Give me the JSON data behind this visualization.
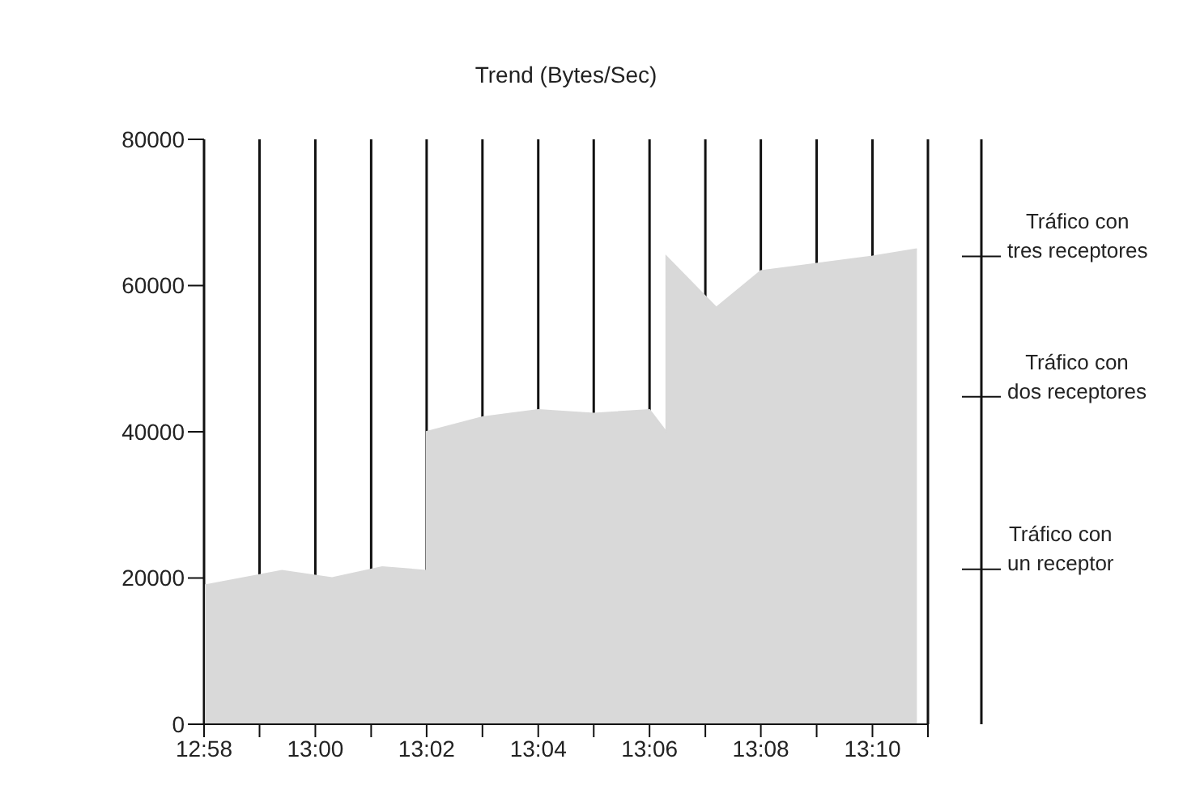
{
  "chart_data": {
    "type": "area",
    "title": "Trend (Bytes/Sec)",
    "x": [
      12.9667,
      12.99,
      13.005,
      13.02,
      13.0333,
      13.0333,
      13.05,
      13.0667,
      13.0833,
      13.1,
      13.105,
      13.105,
      13.12,
      13.1333,
      13.15,
      13.1667,
      13.18
    ],
    "series": [
      {
        "color": "#d9d9d9",
        "values": [
          19000,
          21000,
          20000,
          21500,
          21000,
          40000,
          42000,
          43000,
          42500,
          43000,
          40000,
          64000,
          57000,
          62000,
          63000,
          64000,
          65000
        ]
      }
    ],
    "xlim": [
      12.9667,
      13.1833
    ],
    "xticks": [
      {
        "value": 12.9667,
        "label": "12:58"
      },
      {
        "value": 12.9833,
        "label": null
      },
      {
        "value": 13.0,
        "label": "13:00"
      },
      {
        "value": 13.0167,
        "label": null
      },
      {
        "value": 13.0333,
        "label": "13:02"
      },
      {
        "value": 13.05,
        "label": null
      },
      {
        "value": 13.0667,
        "label": "13:04"
      },
      {
        "value": 13.0833,
        "label": null
      },
      {
        "value": 13.1,
        "label": "13:06"
      },
      {
        "value": 13.1167,
        "label": null
      },
      {
        "value": 13.1333,
        "label": "13:08"
      },
      {
        "value": 13.15,
        "label": null
      },
      {
        "value": 13.1667,
        "label": "13:10"
      },
      {
        "value": 13.1833,
        "label": null
      }
    ],
    "ylim": [
      0,
      80000
    ],
    "yticks": [
      0,
      20000,
      40000,
      60000,
      80000
    ],
    "grid": "x",
    "annotations": [
      "Tráfico con tres receptores",
      "Tráfico con dos receptores",
      "Tráfico con un receptor"
    ]
  }
}
